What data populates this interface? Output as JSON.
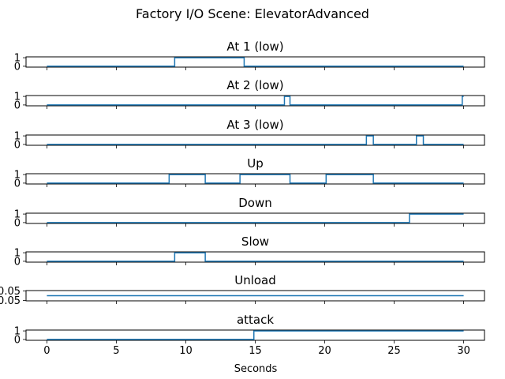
{
  "figure": {
    "suptitle": "Factory I/O Scene: ElevatorAdvanced",
    "xlabel": "Seconds"
  },
  "colors": {
    "line": "#1f77b4",
    "axes": "#000000",
    "background": "#ffffff"
  },
  "chart_data": {
    "type": "line",
    "step": true,
    "xlim": [
      -1.5,
      31.5
    ],
    "xticks": [
      0,
      5,
      10,
      15,
      20,
      25,
      30
    ],
    "subplots": [
      {
        "title": "At 1 (low)",
        "ylim": [
          -0.1,
          1.1
        ],
        "yticks": [
          {
            "value": 1,
            "label": "1"
          },
          {
            "value": 0,
            "label": "0"
          }
        ],
        "x": [
          0,
          9.2,
          9.2,
          14.2,
          14.2,
          30
        ],
        "y": [
          0,
          0,
          1,
          1,
          0,
          0
        ]
      },
      {
        "title": "At 2 (low)",
        "ylim": [
          -0.1,
          1.1
        ],
        "yticks": [
          {
            "value": 1,
            "label": "1"
          },
          {
            "value": 0,
            "label": "0"
          }
        ],
        "x": [
          0,
          17.1,
          17.1,
          17.5,
          17.5,
          29.9,
          29.9,
          30
        ],
        "y": [
          0,
          0,
          1,
          1,
          0,
          0,
          1,
          1
        ]
      },
      {
        "title": "At 3 (low)",
        "ylim": [
          -0.1,
          1.1
        ],
        "yticks": [
          {
            "value": 1,
            "label": "1"
          },
          {
            "value": 0,
            "label": "0"
          }
        ],
        "x": [
          0,
          23.0,
          23.0,
          23.5,
          23.5,
          26.6,
          26.6,
          27.1,
          27.1,
          30
        ],
        "y": [
          0,
          0,
          1,
          1,
          0,
          0,
          1,
          1,
          0,
          0
        ]
      },
      {
        "title": "Up",
        "ylim": [
          -0.1,
          1.1
        ],
        "yticks": [
          {
            "value": 1,
            "label": "1"
          },
          {
            "value": 0,
            "label": "0"
          }
        ],
        "x": [
          0,
          8.8,
          8.8,
          11.4,
          11.4,
          13.9,
          13.9,
          17.5,
          17.5,
          20.1,
          20.1,
          23.5,
          23.5,
          30
        ],
        "y": [
          0,
          0,
          1,
          1,
          0,
          0,
          1,
          1,
          0,
          0,
          1,
          1,
          0,
          0
        ]
      },
      {
        "title": "Down",
        "ylim": [
          -0.1,
          1.1
        ],
        "yticks": [
          {
            "value": 1,
            "label": "1"
          },
          {
            "value": 0,
            "label": "0"
          }
        ],
        "x": [
          0,
          26.1,
          26.1,
          30
        ],
        "y": [
          0,
          0,
          1,
          1
        ]
      },
      {
        "title": "Slow",
        "ylim": [
          -0.1,
          1.1
        ],
        "yticks": [
          {
            "value": 1,
            "label": "1"
          },
          {
            "value": 0,
            "label": "0"
          }
        ],
        "x": [
          0,
          9.2,
          9.2,
          11.4,
          11.4,
          30
        ],
        "y": [
          0,
          0,
          1,
          1,
          0,
          0
        ]
      },
      {
        "title": "Unload",
        "ylim": [
          -0.055,
          0.055
        ],
        "yticks": [
          {
            "value": 0.05,
            "label": "0.05"
          },
          {
            "value": -0.05,
            "label": "-0.05"
          }
        ],
        "x": [
          0,
          30
        ],
        "y": [
          0,
          0
        ]
      },
      {
        "title": "attack",
        "ylim": [
          -0.1,
          1.1
        ],
        "yticks": [
          {
            "value": 1,
            "label": "1"
          },
          {
            "value": 0,
            "label": "0"
          }
        ],
        "x": [
          0,
          14.9,
          14.9,
          30
        ],
        "y": [
          0,
          0,
          1,
          1
        ]
      }
    ]
  }
}
